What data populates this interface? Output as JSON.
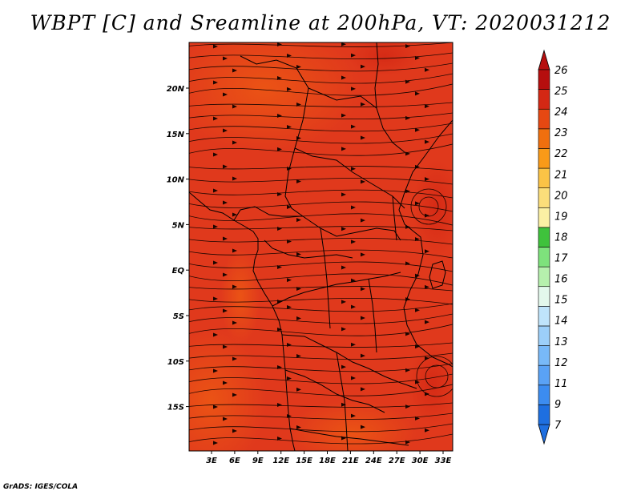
{
  "title": "WBPT [C] and Sreamline at 200hPa, VT: 2020031212",
  "credit": "GrADS: IGES/COLA",
  "map": {
    "lon_labels": [
      "3E",
      "6E",
      "9E",
      "12E",
      "15E",
      "18E",
      "21E",
      "24E",
      "27E",
      "30E",
      "33E"
    ],
    "lat_labels": [
      "20N",
      "15N",
      "10N",
      "5N",
      "EQ",
      "5S",
      "10S",
      "15S"
    ],
    "dominant_fill": "#e0391c",
    "secondary_fill": "#ec5614",
    "line_color": "#000000"
  },
  "colorbar": {
    "labels": [
      "7",
      "9",
      "11",
      "12",
      "13",
      "14",
      "15",
      "16",
      "17",
      "18",
      "19",
      "20",
      "21",
      "22",
      "23",
      "24",
      "25",
      "26"
    ],
    "colors": [
      "#1e6fe0",
      "#3c8cf0",
      "#5aa2f5",
      "#78b9f8",
      "#9ccff9",
      "#bfe4fb",
      "#e3f8ec",
      "#b6f0ad",
      "#7ee27c",
      "#3fc23c",
      "#fbf0a4",
      "#fbde7a",
      "#fbc346",
      "#f99a18",
      "#f06f0e",
      "#e64812",
      "#d42814",
      "#b60e0e"
    ],
    "low_arrow_color": "#1e6fe0",
    "high_arrow_color": "#b60e0e"
  }
}
